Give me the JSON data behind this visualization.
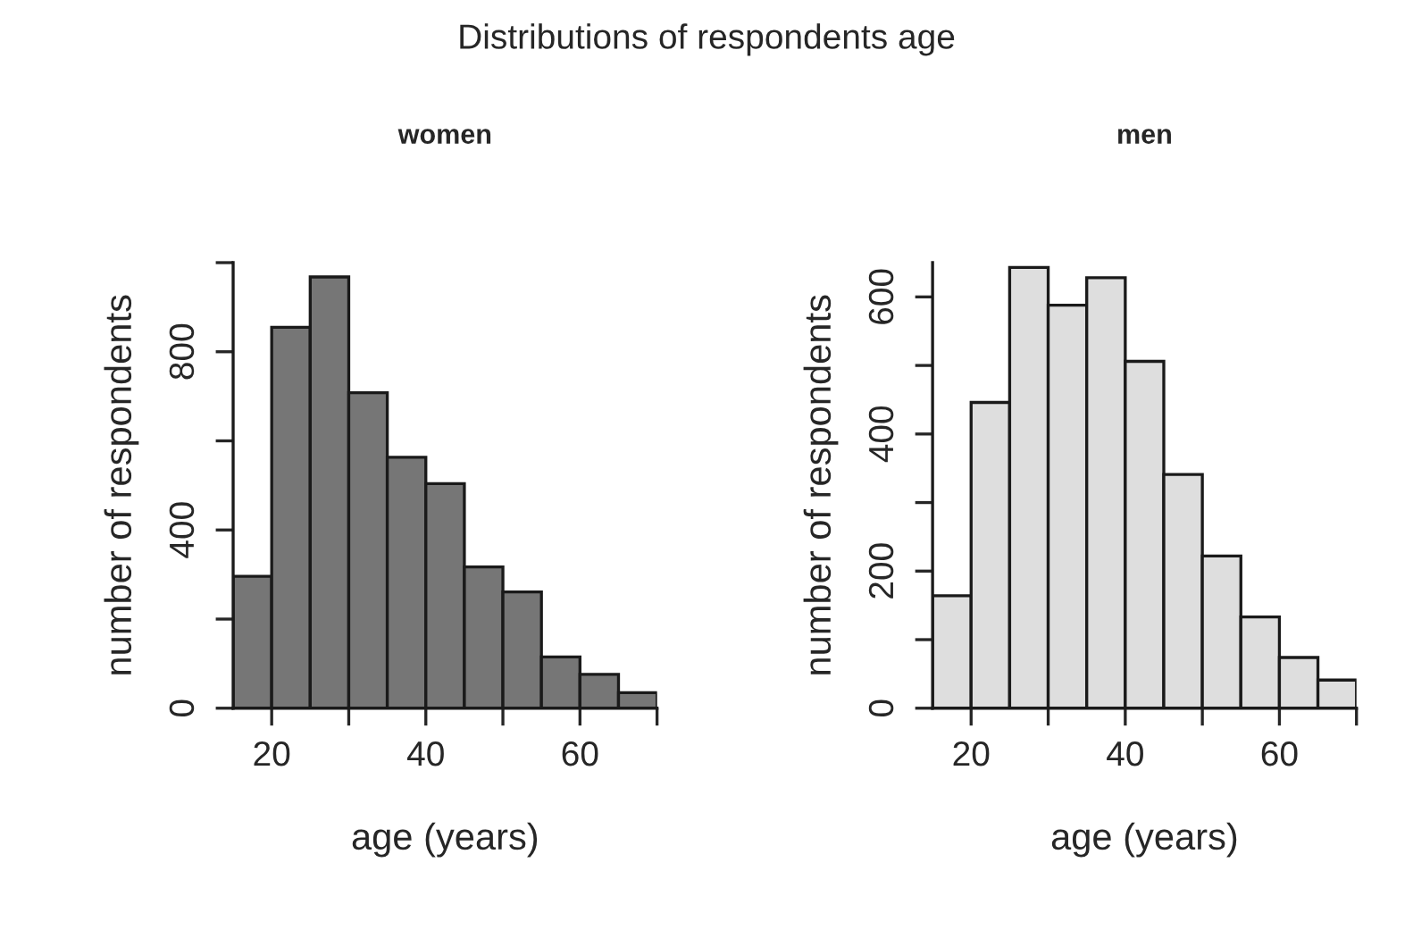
{
  "chart_data": [
    {
      "type": "histogram",
      "title": "Distributions of respondents age",
      "subtitle": "women",
      "xlabel": "age (years)",
      "ylabel": "number of respondents",
      "bins": [
        15,
        20,
        25,
        30,
        35,
        40,
        45,
        50,
        55,
        60,
        65,
        70
      ],
      "values": [
        296,
        855,
        968,
        708,
        563,
        504,
        317,
        261,
        115,
        76,
        35
      ],
      "color": "#767676",
      "xlim": [
        15,
        70
      ],
      "xticks": [
        20,
        {
          "value": 30,
          "label": null
        },
        40,
        {
          "value": 50,
          "label": null
        },
        60,
        {
          "value": 70,
          "label": null
        }
      ],
      "ylim": [
        0,
        1000
      ],
      "yticks": [
        0,
        {
          "value": 200,
          "label": null
        },
        400,
        {
          "value": 600,
          "label": null
        },
        800,
        {
          "value": 1000,
          "label": null
        }
      ],
      "grid": false
    },
    {
      "type": "histogram",
      "subtitle": "men",
      "xlabel": "age (years)",
      "ylabel": "number of respondents",
      "bins": [
        15,
        20,
        25,
        30,
        35,
        40,
        45,
        50,
        55,
        60,
        65,
        70
      ],
      "values": [
        164,
        446,
        643,
        588,
        628,
        506,
        341,
        222,
        133,
        74,
        41
      ],
      "color": "#dedede",
      "xlim": [
        15,
        70
      ],
      "xticks": [
        20,
        {
          "value": 30,
          "label": null
        },
        40,
        {
          "value": 50,
          "label": null
        },
        60,
        {
          "value": 70,
          "label": null
        }
      ],
      "ylim": [
        0,
        650
      ],
      "yticks": [
        0,
        {
          "value": 100,
          "label": null
        },
        200,
        {
          "value": 300,
          "label": null
        },
        400,
        {
          "value": 500,
          "label": null
        },
        600
      ],
      "grid": false
    }
  ]
}
